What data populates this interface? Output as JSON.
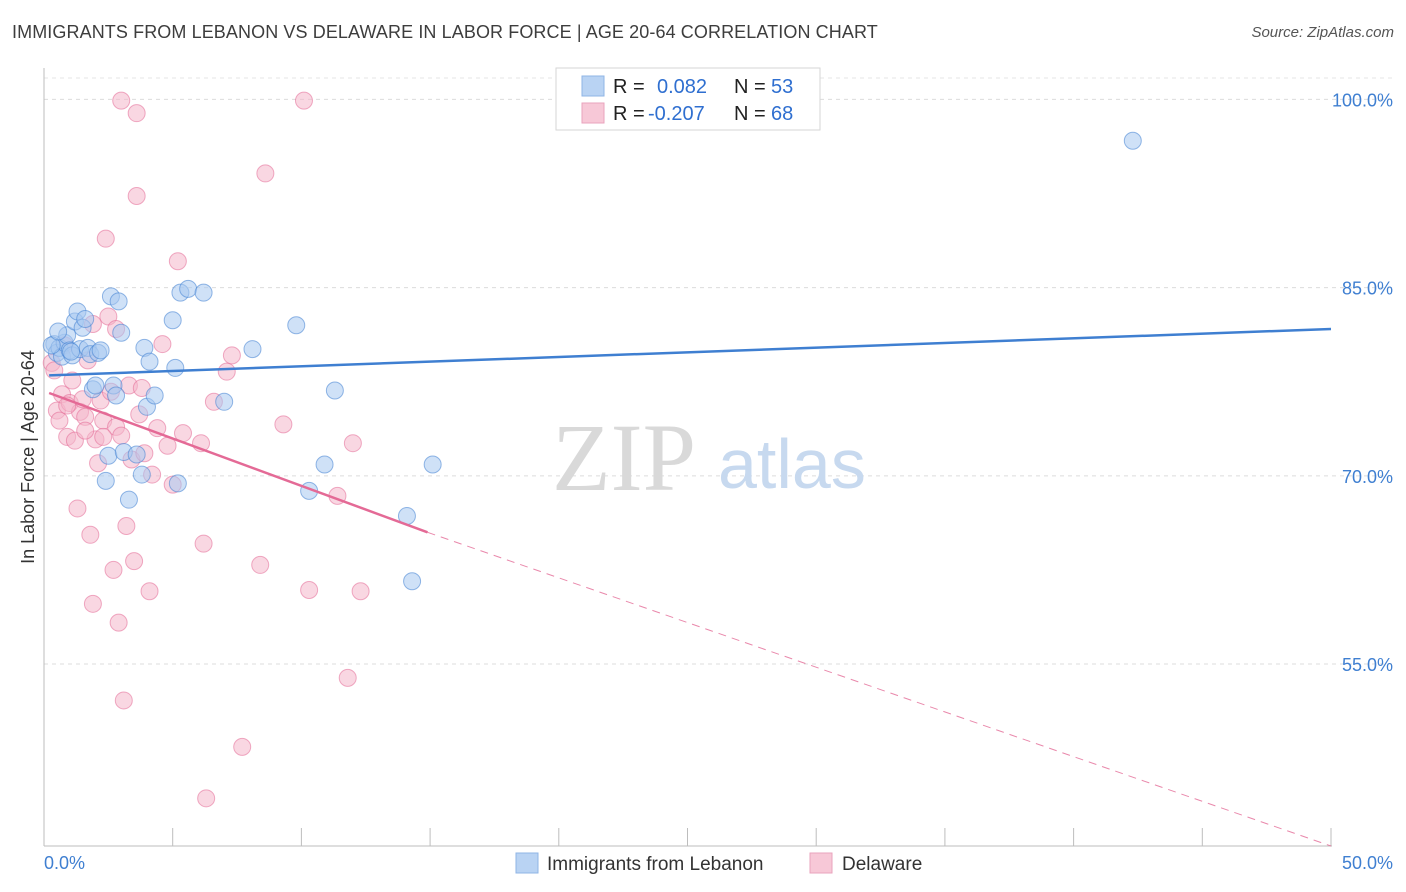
{
  "title": "IMMIGRANTS FROM LEBANON VS DELAWARE IN LABOR FORCE | AGE 20-64 CORRELATION CHART",
  "source": "Source: ZipAtlas.com",
  "watermark": {
    "zip": "ZIP",
    "atlas": "atlas"
  },
  "colors": {
    "blue": "#3f7fd1",
    "blue_fill": "#a8c8f0",
    "pink": "#e46a96",
    "pink_fill": "#f4b6ca"
  },
  "chart_data": {
    "type": "scatter",
    "title": "IMMIGRANTS FROM LEBANON VS DELAWARE IN LABOR FORCE | AGE 20-64 CORRELATION CHART",
    "xlabel": "",
    "ylabel": "In Labor Force | Age 20-64",
    "xlim": [
      0,
      50
    ],
    "ylim": [
      40.5,
      102.5
    ],
    "x_tick_labels": [
      "0.0%",
      "50.0%"
    ],
    "y_ticks": [
      55,
      70,
      85,
      100
    ],
    "y_tick_labels": [
      "55.0%",
      "70.0%",
      "85.0%",
      "100.0%"
    ],
    "grid": true,
    "legend": [
      {
        "name": "Immigrants from Lebanon",
        "r_label": "R =",
        "r_value": "0.082",
        "n_label": "N =",
        "n_value": "53"
      },
      {
        "name": "Delaware",
        "r_label": "R =",
        "r_value": "-0.207",
        "n_label": "N =",
        "n_value": "68"
      }
    ],
    "series": [
      {
        "name": "Immigrants from Lebanon",
        "color": "#3f7fd1",
        "trend": {
          "x": [
            0.2,
            50
          ],
          "y": [
            78.0,
            81.7
          ],
          "style": "solid"
        },
        "points": [
          [
            0.4,
            80.5
          ],
          [
            0.5,
            79.8
          ],
          [
            0.6,
            80.2
          ],
          [
            0.7,
            79.5
          ],
          [
            0.8,
            80.6
          ],
          [
            0.9,
            81.2
          ],
          [
            1.0,
            80.0
          ],
          [
            1.1,
            79.6
          ],
          [
            1.2,
            82.3
          ],
          [
            1.3,
            83.1
          ],
          [
            1.4,
            80.1
          ],
          [
            1.5,
            81.8
          ],
          [
            1.6,
            82.5
          ],
          [
            1.7,
            80.2
          ],
          [
            1.8,
            79.7
          ],
          [
            1.9,
            76.9
          ],
          [
            2.0,
            77.2
          ],
          [
            2.1,
            79.8
          ],
          [
            2.2,
            80.0
          ],
          [
            2.4,
            69.6
          ],
          [
            2.5,
            71.6
          ],
          [
            2.6,
            84.3
          ],
          [
            2.7,
            77.2
          ],
          [
            2.8,
            76.4
          ],
          [
            2.9,
            83.9
          ],
          [
            3.0,
            81.4
          ],
          [
            3.1,
            71.9
          ],
          [
            3.3,
            68.1
          ],
          [
            3.6,
            71.7
          ],
          [
            3.8,
            70.1
          ],
          [
            3.9,
            80.2
          ],
          [
            4.0,
            75.5
          ],
          [
            4.1,
            79.1
          ],
          [
            4.3,
            76.4
          ],
          [
            5.0,
            82.4
          ],
          [
            5.1,
            78.6
          ],
          [
            5.2,
            69.4
          ],
          [
            5.3,
            84.6
          ],
          [
            5.6,
            84.9
          ],
          [
            6.2,
            84.6
          ],
          [
            7.0,
            75.9
          ],
          [
            8.1,
            80.1
          ],
          [
            9.8,
            82.0
          ],
          [
            10.3,
            68.8
          ],
          [
            10.9,
            70.9
          ],
          [
            11.3,
            76.8
          ],
          [
            14.1,
            66.8
          ],
          [
            14.3,
            61.6
          ],
          [
            15.1,
            70.9
          ],
          [
            42.3,
            96.7
          ],
          [
            0.3,
            80.4
          ],
          [
            1.05,
            79.9
          ],
          [
            0.55,
            81.5
          ]
        ]
      },
      {
        "name": "Delaware",
        "color": "#e46a96",
        "trend": {
          "x": [
            0.2,
            14.9
          ],
          "y": [
            76.6,
            65.5
          ],
          "style": "solid"
        },
        "trend_extension": {
          "x": [
            14.9,
            50
          ],
          "y": [
            65.5,
            39.2
          ],
          "style": "dashed"
        },
        "points": [
          [
            0.3,
            79.0
          ],
          [
            0.4,
            78.4
          ],
          [
            0.5,
            75.2
          ],
          [
            0.6,
            74.4
          ],
          [
            0.7,
            76.5
          ],
          [
            0.8,
            80.4
          ],
          [
            0.9,
            73.1
          ],
          [
            1.0,
            75.8
          ],
          [
            1.1,
            77.6
          ],
          [
            1.2,
            72.8
          ],
          [
            1.3,
            67.4
          ],
          [
            1.4,
            75.1
          ],
          [
            1.5,
            76.1
          ],
          [
            1.6,
            74.7
          ],
          [
            1.7,
            79.2
          ],
          [
            1.8,
            65.3
          ],
          [
            1.9,
            59.8
          ],
          [
            2.0,
            72.9
          ],
          [
            2.1,
            71.0
          ],
          [
            2.2,
            76.0
          ],
          [
            2.3,
            74.4
          ],
          [
            2.4,
            88.9
          ],
          [
            2.5,
            82.7
          ],
          [
            2.6,
            76.7
          ],
          [
            2.7,
            62.5
          ],
          [
            2.8,
            73.9
          ],
          [
            2.9,
            58.3
          ],
          [
            3.0,
            73.2
          ],
          [
            3.1,
            52.1
          ],
          [
            3.2,
            66.0
          ],
          [
            3.3,
            77.2
          ],
          [
            3.4,
            71.3
          ],
          [
            3.5,
            63.2
          ],
          [
            3.6,
            92.3
          ],
          [
            3.7,
            74.9
          ],
          [
            3.8,
            77.0
          ],
          [
            3.9,
            71.8
          ],
          [
            4.1,
            60.8
          ],
          [
            4.2,
            70.1
          ],
          [
            4.4,
            73.8
          ],
          [
            4.6,
            80.5
          ],
          [
            4.8,
            72.4
          ],
          [
            5.0,
            69.3
          ],
          [
            5.2,
            87.1
          ],
          [
            5.4,
            73.4
          ],
          [
            6.1,
            72.6
          ],
          [
            6.2,
            64.6
          ],
          [
            6.3,
            44.3
          ],
          [
            6.6,
            75.9
          ],
          [
            7.1,
            78.3
          ],
          [
            7.3,
            79.6
          ],
          [
            7.7,
            48.4
          ],
          [
            8.4,
            62.9
          ],
          [
            8.6,
            94.1
          ],
          [
            9.3,
            74.1
          ],
          [
            10.1,
            99.9
          ],
          [
            10.3,
            60.9
          ],
          [
            11.4,
            68.4
          ],
          [
            11.8,
            53.9
          ],
          [
            12.0,
            72.6
          ],
          [
            12.3,
            60.8
          ],
          [
            1.9,
            82.1
          ],
          [
            2.3,
            73.1
          ],
          [
            3.0,
            99.9
          ],
          [
            3.6,
            98.9
          ],
          [
            2.8,
            81.7
          ],
          [
            1.6,
            73.6
          ],
          [
            0.9,
            75.6
          ]
        ]
      }
    ]
  }
}
